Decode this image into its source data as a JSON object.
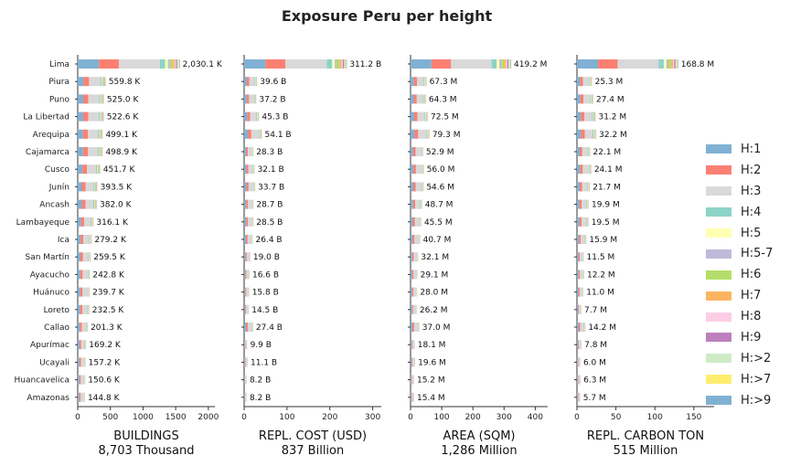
{
  "chart_data": {
    "type": "bar",
    "orientation": "horizontal",
    "stacked": true,
    "title": "Exposure Peru per height",
    "categories": [
      "Lima",
      "Piura",
      "Puno",
      "La Libertad",
      "Arequipa",
      "Cajamarca",
      "Cusco",
      "Junín",
      "Ancash",
      "Lambayeque",
      "Ica",
      "San Martín",
      "Ayacucho",
      "Huánuco",
      "Loreto",
      "Callao",
      "Apurímac",
      "Ucayali",
      "Huancavelica",
      "Amazonas"
    ],
    "legend": {
      "position": "right",
      "items": [
        {
          "name": "H:1",
          "color": "#80b1d3"
        },
        {
          "name": "H:2",
          "color": "#fb8072"
        },
        {
          "name": "H:3",
          "color": "#d9d9d9"
        },
        {
          "name": "H:4",
          "color": "#8dd3c7"
        },
        {
          "name": "H:5",
          "color": "#ffffb3"
        },
        {
          "name": "H:5-7",
          "color": "#bebada"
        },
        {
          "name": "H:6",
          "color": "#b3de69"
        },
        {
          "name": "H:7",
          "color": "#fdb462"
        },
        {
          "name": "H:8",
          "color": "#fccde5"
        },
        {
          "name": "H:9",
          "color": "#bc80bd"
        },
        {
          "name": "H:>2",
          "color": "#ccebc5"
        },
        {
          "name": "H:>7",
          "color": "#ffed6f"
        },
        {
          "name": "H:>9",
          "color": "#80b1d3"
        }
      ]
    },
    "panels": [
      {
        "xlabel": "BUILDINGS",
        "xlabel_total": "8,703 Thousand",
        "xlim": [
          0,
          2100
        ],
        "xticks": [
          0,
          500,
          1000,
          1500,
          2000
        ],
        "totals": [
          2030.1,
          559.8,
          525.0,
          522.6,
          499.1,
          498.9,
          451.7,
          393.5,
          382.0,
          316.1,
          279.2,
          259.5,
          242.8,
          239.7,
          232.5,
          201.3,
          169.2,
          157.2,
          150.6,
          144.8
        ],
        "value_labels": [
          "2,030.1 K",
          "559.8 K",
          "525.0 K",
          "522.6 K",
          "499.1 K",
          "498.9 K",
          "451.7 K",
          "393.5 K",
          "382.0 K",
          "316.1 K",
          "279.2 K",
          "259.5 K",
          "242.8 K",
          "239.7 K",
          "232.5 K",
          "201.3 K",
          "169.2 K",
          "157.2 K",
          "150.6 K",
          "144.8 K"
        ]
      },
      {
        "xlabel": "REPL. COST (USD)",
        "xlabel_total": "837 Billion",
        "xlim": [
          0,
          320
        ],
        "xticks": [
          0,
          100,
          200,
          300
        ],
        "totals": [
          311.2,
          39.6,
          37.2,
          45.3,
          54.1,
          28.3,
          32.1,
          33.7,
          28.7,
          28.5,
          26.4,
          19.0,
          16.6,
          15.8,
          14.5,
          27.4,
          9.9,
          11.1,
          8.2,
          8.2
        ],
        "value_labels": [
          "311.2 B",
          "39.6 B",
          "37.2 B",
          "45.3 B",
          "54.1 B",
          "28.3 B",
          "32.1 B",
          "33.7 B",
          "28.7 B",
          "28.5 B",
          "26.4 B",
          "19.0 B",
          "16.6 B",
          "15.8 B",
          "14.5 B",
          "27.4 B",
          "9.9 B",
          "11.1 B",
          "8.2 B",
          "8.2 B"
        ]
      },
      {
        "xlabel": "AREA (SQM)",
        "xlabel_total": "1,286 Million",
        "xlim": [
          0,
          440
        ],
        "xticks": [
          0,
          100,
          200,
          300,
          400
        ],
        "totals": [
          419.2,
          67.3,
          64.3,
          72.5,
          79.3,
          52.9,
          56.0,
          54.6,
          48.7,
          45.5,
          40.7,
          32.1,
          29.1,
          28.0,
          26.2,
          37.0,
          18.1,
          19.6,
          15.2,
          15.4
        ],
        "value_labels": [
          "419.2 M",
          "67.3 M",
          "64.3 M",
          "72.5 M",
          "79.3 M",
          "52.9 M",
          "56.0 M",
          "54.6 M",
          "48.7 M",
          "45.5 M",
          "40.7 M",
          "32.1 M",
          "29.1 M",
          "28.0 M",
          "26.2 M",
          "37.0 M",
          "18.1 M",
          "19.6 M",
          "15.2 M",
          "15.4 M"
        ]
      },
      {
        "xlabel": "REPL. CARBON TON",
        "xlabel_total": "515 Million",
        "xlim": [
          0,
          176
        ],
        "xticks": [
          0,
          50,
          100,
          150
        ],
        "totals": [
          168.8,
          25.3,
          27.4,
          31.2,
          32.2,
          22.1,
          24.1,
          21.7,
          19.9,
          19.5,
          15.9,
          11.5,
          12.2,
          11.0,
          7.7,
          14.2,
          7.8,
          6.0,
          6.3,
          5.7
        ],
        "value_labels": [
          "168.8 M",
          "25.3 M",
          "27.4 M",
          "31.2 M",
          "32.2 M",
          "22.1 M",
          "24.1 M",
          "21.7 M",
          "19.9 M",
          "19.5 M",
          "15.9 M",
          "11.5 M",
          "12.2 M",
          "11.0 M",
          "7.7 M",
          "14.2 M",
          "7.8 M",
          "6.0 M",
          "6.3 M",
          "5.7 M"
        ]
      }
    ]
  }
}
